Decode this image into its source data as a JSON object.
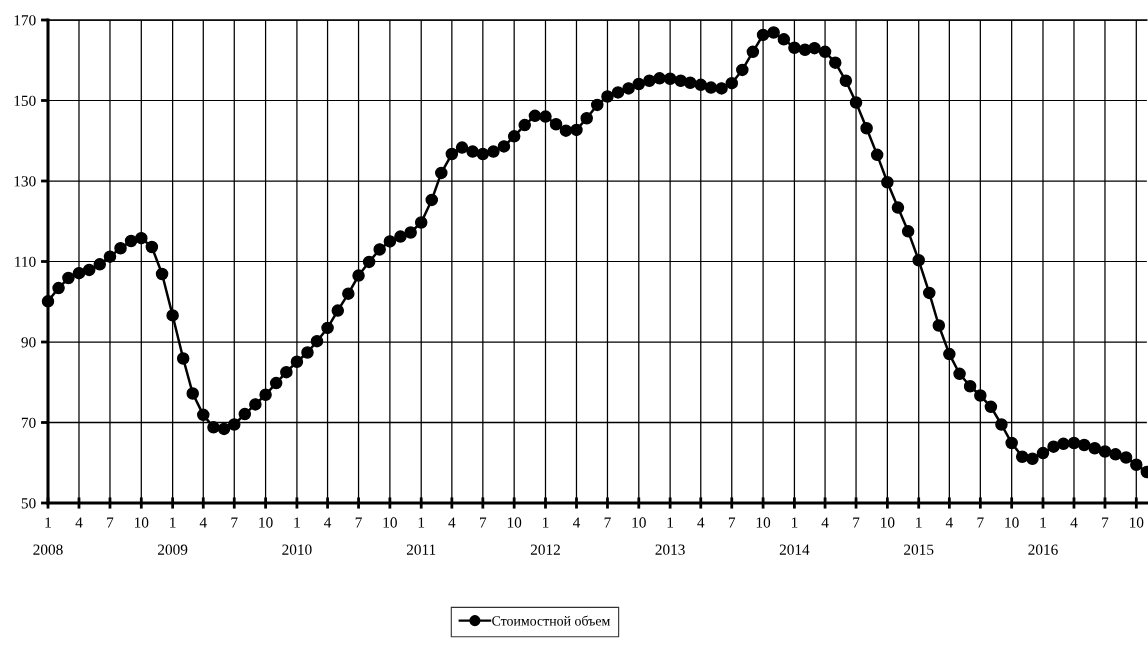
{
  "chart_data": {
    "type": "line",
    "x": [
      "2008-01",
      "2008-02",
      "2008-03",
      "2008-04",
      "2008-05",
      "2008-06",
      "2008-07",
      "2008-08",
      "2008-09",
      "2008-10",
      "2008-11",
      "2008-12",
      "2009-01",
      "2009-02",
      "2009-03",
      "2009-04",
      "2009-05",
      "2009-06",
      "2009-07",
      "2009-08",
      "2009-09",
      "2009-10",
      "2009-11",
      "2009-12",
      "2010-01",
      "2010-02",
      "2010-03",
      "2010-04",
      "2010-05",
      "2010-06",
      "2010-07",
      "2010-08",
      "2010-09",
      "2010-10",
      "2010-11",
      "2010-12",
      "2011-01",
      "2011-02",
      "2011-03",
      "2011-04",
      "2011-05",
      "2011-06",
      "2011-07",
      "2011-08",
      "2011-09",
      "2011-10",
      "2011-11",
      "2011-12",
      "2012-01",
      "2012-02",
      "2012-03",
      "2012-04",
      "2012-05",
      "2012-06",
      "2012-07",
      "2012-08",
      "2012-09",
      "2012-10",
      "2012-11",
      "2012-12",
      "2013-01",
      "2013-02",
      "2013-03",
      "2013-04",
      "2013-05",
      "2013-06",
      "2013-07",
      "2013-08",
      "2013-09",
      "2013-10",
      "2013-11",
      "2013-12",
      "2014-01",
      "2014-02",
      "2014-03",
      "2014-04",
      "2014-05",
      "2014-06",
      "2014-07",
      "2014-08",
      "2014-09",
      "2014-10",
      "2014-11",
      "2014-12",
      "2015-01",
      "2015-02",
      "2015-03",
      "2015-04",
      "2015-05",
      "2015-06",
      "2015-07",
      "2015-08",
      "2015-09",
      "2015-10",
      "2015-11",
      "2015-12",
      "2016-01",
      "2016-02",
      "2016-03",
      "2016-04",
      "2016-05",
      "2016-06",
      "2016-07",
      "2016-08",
      "2016-09",
      "2016-10",
      "2016-11"
    ],
    "series": [
      {
        "name": "Стоимостной объем",
        "color": "#000000",
        "values": [
          100.1,
          103.4,
          105.9,
          107.1,
          107.9,
          109.3,
          111.2,
          113.3,
          115.1,
          115.8,
          113.6,
          106.9,
          96.6,
          85.9,
          77.2,
          71.9,
          68.8,
          68.4,
          69.5,
          72.1,
          74.5,
          76.9,
          79.8,
          82.5,
          85.1,
          87.4,
          90.2,
          93.5,
          97.8,
          102.0,
          106.5,
          109.9,
          113.0,
          115.0,
          116.2,
          117.2,
          119.7,
          125.3,
          132.0,
          136.7,
          138.3,
          137.3,
          136.7,
          137.3,
          138.6,
          141.1,
          143.9,
          146.2,
          146.0,
          144.1,
          142.5,
          142.7,
          145.6,
          148.9,
          151.0,
          152.0,
          153.0,
          154.1,
          154.9,
          155.5,
          155.4,
          154.9,
          154.4,
          153.9,
          153.2,
          153.0,
          154.3,
          157.6,
          162.1,
          166.3,
          166.9,
          165.2,
          163.1,
          162.6,
          163.0,
          162.1,
          159.4,
          154.9,
          149.5,
          143.1,
          136.5,
          129.7,
          123.4,
          117.5,
          110.3,
          102.2,
          94.1,
          87.0,
          82.1,
          79.0,
          76.7,
          73.9,
          69.5,
          64.9,
          61.5,
          61.0,
          62.4,
          64.0,
          64.7,
          64.9,
          64.4,
          63.6,
          62.8,
          62.1,
          61.3,
          59.5,
          57.7
        ]
      }
    ],
    "xlim": [
      "2008-01",
      "2016-11"
    ],
    "xticks": [
      {
        "value": "2008-01",
        "label": "1"
      },
      {
        "value": "2008-04",
        "label": "4"
      },
      {
        "value": "2008-07",
        "label": "7"
      },
      {
        "value": "2008-10",
        "label": "10"
      },
      {
        "value": "2009-01",
        "label": "1"
      },
      {
        "value": "2009-04",
        "label": "4"
      },
      {
        "value": "2009-07",
        "label": "7"
      },
      {
        "value": "2009-10",
        "label": "10"
      },
      {
        "value": "2010-01",
        "label": "1"
      },
      {
        "value": "2010-04",
        "label": "4"
      },
      {
        "value": "2010-07",
        "label": "7"
      },
      {
        "value": "2010-10",
        "label": "10"
      },
      {
        "value": "2011-01",
        "label": "1"
      },
      {
        "value": "2011-04",
        "label": "4"
      },
      {
        "value": "2011-07",
        "label": "7"
      },
      {
        "value": "2011-10",
        "label": "10"
      },
      {
        "value": "2012-01",
        "label": "1"
      },
      {
        "value": "2012-04",
        "label": "4"
      },
      {
        "value": "2012-07",
        "label": "7"
      },
      {
        "value": "2012-10",
        "label": "10"
      },
      {
        "value": "2013-01",
        "label": "1"
      },
      {
        "value": "2013-04",
        "label": "4"
      },
      {
        "value": "2013-07",
        "label": "7"
      },
      {
        "value": "2013-10",
        "label": "10"
      },
      {
        "value": "2014-01",
        "label": "1"
      },
      {
        "value": "2014-04",
        "label": "4"
      },
      {
        "value": "2014-07",
        "label": "7"
      },
      {
        "value": "2014-10",
        "label": "10"
      },
      {
        "value": "2015-01",
        "label": "1"
      },
      {
        "value": "2015-04",
        "label": "4"
      },
      {
        "value": "2015-07",
        "label": "7"
      },
      {
        "value": "2015-10",
        "label": "10"
      },
      {
        "value": "2016-01",
        "label": "1"
      },
      {
        "value": "2016-04",
        "label": "4"
      },
      {
        "value": "2016-07",
        "label": "7"
      },
      {
        "value": "2016-10",
        "label": "10"
      }
    ],
    "x2lim": [
      "2008-01",
      "2016-11"
    ],
    "x2ticks": [
      {
        "value": "2008-01",
        "label": "2008"
      },
      {
        "value": "2009-01",
        "label": "2009"
      },
      {
        "value": "2010-01",
        "label": "2010"
      },
      {
        "value": "2011-01",
        "label": "2011"
      },
      {
        "value": "2012-01",
        "label": "2012"
      },
      {
        "value": "2013-01",
        "label": "2013"
      },
      {
        "value": "2014-01",
        "label": "2014"
      },
      {
        "value": "2015-01",
        "label": "2015"
      },
      {
        "value": "2016-01",
        "label": "2016"
      }
    ],
    "ylim": [
      50,
      170
    ],
    "yticks": [
      50,
      70,
      90,
      110,
      130,
      150,
      170
    ],
    "grid": true,
    "legend": "bottom",
    "marker": "circle",
    "line_style": "solid"
  }
}
